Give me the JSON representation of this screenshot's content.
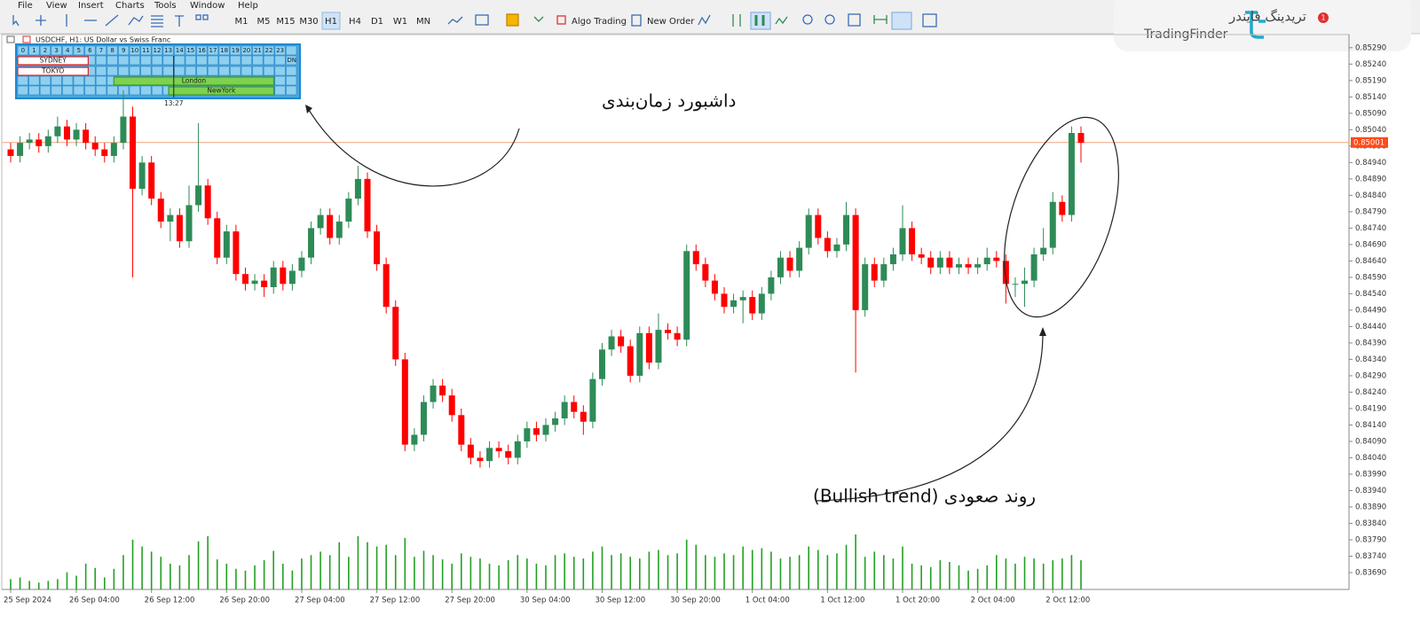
{
  "menu": [
    "File",
    "View",
    "Insert",
    "Charts",
    "Tools",
    "Window",
    "Help"
  ],
  "toolbar": {
    "timeframes": [
      "M1",
      "M5",
      "M15",
      "M30",
      "H1",
      "H4",
      "D1",
      "W1",
      "MN"
    ],
    "buttons": [
      "Algo Trading",
      "New Order"
    ]
  },
  "brand": {
    "name_fa": "تریدینگ فایندر",
    "name_en": "TradingFinder",
    "notifications": 1
  },
  "chart_data": {
    "type": "candlestick",
    "title": "USDCHF, H1:  US Dollar vs Swiss Franc",
    "categories": [
      "25 Sep 2024",
      null,
      null,
      null,
      null,
      null,
      null,
      "26 Sep 04:00",
      null,
      null,
      null,
      null,
      null,
      null,
      null,
      "26 Sep 12:00",
      null,
      null,
      null,
      null,
      null,
      null,
      null,
      "26 Sep 20:00",
      null,
      null,
      null,
      null,
      null,
      null,
      null,
      "27 Sep 04:00",
      null,
      null,
      null,
      null,
      null,
      null,
      null,
      "27 Sep 12:00",
      null,
      null,
      null,
      null,
      null,
      null,
      null,
      "27 Sep 20:00",
      null,
      null,
      null,
      null,
      null,
      null,
      null,
      "30 Sep 04:00",
      null,
      null,
      null,
      null,
      null,
      null,
      null,
      "30 Sep 12:00",
      null,
      null,
      null,
      null,
      null,
      null,
      null,
      "30 Sep 20:00",
      null,
      null,
      null,
      null,
      null,
      null,
      null,
      "1 Oct 04:00",
      null,
      null,
      null,
      null,
      null,
      null,
      null,
      "1 Oct 12:00",
      null,
      null,
      null,
      null,
      null,
      null,
      null,
      "1 Oct 20:00",
      null,
      null,
      null,
      null,
      null,
      null,
      null,
      "2 Oct 04:00",
      null,
      null,
      null,
      null,
      null,
      null,
      null,
      "2 Oct 12:00",
      null,
      null,
      null
    ],
    "open": [
      0.8498,
      0.8496,
      0.85,
      0.8501,
      0.8499,
      0.8502,
      0.8505,
      0.8501,
      0.8504,
      0.85,
      0.8498,
      0.8496,
      0.85,
      0.8508,
      0.8486,
      0.8494,
      0.8483,
      0.8476,
      0.8478,
      0.847,
      0.8481,
      0.8487,
      0.8477,
      0.8465,
      0.8473,
      0.846,
      0.8457,
      0.8458,
      0.8456,
      0.8462,
      0.8457,
      0.8461,
      0.8465,
      0.8474,
      0.8478,
      0.8471,
      0.8476,
      0.8483,
      0.8489,
      0.8473,
      0.8463,
      0.845,
      0.8434,
      0.8408,
      0.8411,
      0.8421,
      0.8426,
      0.8423,
      0.8417,
      0.8408,
      0.8404,
      0.8403,
      0.8407,
      0.8406,
      0.8404,
      0.8409,
      0.8413,
      0.8411,
      0.8414,
      0.8416,
      0.8421,
      0.8418,
      0.8415,
      0.8428,
      0.8437,
      0.8441,
      0.8438,
      0.8429,
      0.8442,
      0.8433,
      0.8443,
      0.8442,
      0.844,
      0.8467,
      0.8463,
      0.8458,
      0.8454,
      0.845,
      0.8452,
      0.8453,
      0.8448,
      0.8454,
      0.8459,
      0.8465,
      0.8461,
      0.8468,
      0.8478,
      0.8471,
      0.8467,
      0.8469,
      0.8478,
      0.8449,
      0.8463,
      0.8458,
      0.8463,
      0.8466,
      0.8474,
      0.8466,
      0.8465,
      0.8462,
      0.8465,
      0.8462,
      0.8463,
      0.8462,
      0.8463,
      0.8465,
      0.8464,
      0.8457,
      0.8457,
      0.8458,
      0.8466,
      0.8468,
      0.8482,
      0.8478,
      0.8503
    ],
    "high": [
      0.85,
      0.8502,
      0.8503,
      0.8503,
      0.8504,
      0.8508,
      0.8507,
      0.8506,
      0.8506,
      0.8502,
      0.85,
      0.8502,
      0.8516,
      0.8511,
      0.8496,
      0.8496,
      0.8485,
      0.848,
      0.848,
      0.8487,
      0.8506,
      0.8489,
      0.8479,
      0.8475,
      0.8475,
      0.8462,
      0.846,
      0.846,
      0.8464,
      0.8464,
      0.8463,
      0.8467,
      0.8476,
      0.848,
      0.848,
      0.8478,
      0.8485,
      0.8493,
      0.8491,
      0.8475,
      0.8465,
      0.8452,
      0.8436,
      0.8413,
      0.8423,
      0.8428,
      0.8428,
      0.8425,
      0.8419,
      0.841,
      0.8406,
      0.8409,
      0.8409,
      0.8408,
      0.8411,
      0.8415,
      0.8415,
      0.8416,
      0.8418,
      0.8423,
      0.8423,
      0.842,
      0.843,
      0.8439,
      0.8443,
      0.8443,
      0.844,
      0.8444,
      0.8444,
      0.8448,
      0.8445,
      0.8444,
      0.8469,
      0.8469,
      0.8465,
      0.846,
      0.8456,
      0.8454,
      0.8455,
      0.8455,
      0.8456,
      0.8461,
      0.8467,
      0.8467,
      0.847,
      0.848,
      0.848,
      0.8473,
      0.8471,
      0.8482,
      0.848,
      0.8465,
      0.8465,
      0.8465,
      0.8468,
      0.8481,
      0.8476,
      0.8468,
      0.8467,
      0.8467,
      0.8467,
      0.8465,
      0.8465,
      0.8465,
      0.8468,
      0.8467,
      0.8466,
      0.8459,
      0.8462,
      0.8468,
      0.8474,
      0.8485,
      0.8484,
      0.8505,
      0.8505
    ],
    "low": [
      0.8494,
      0.8494,
      0.8498,
      0.8497,
      0.8497,
      0.85,
      0.8499,
      0.8499,
      0.8498,
      0.8496,
      0.8494,
      0.8494,
      0.8498,
      0.8459,
      0.8484,
      0.8481,
      0.8474,
      0.847,
      0.8468,
      0.8468,
      0.8479,
      0.8475,
      0.8463,
      0.8463,
      0.8458,
      0.8455,
      0.8455,
      0.8453,
      0.8454,
      0.8455,
      0.8455,
      0.8459,
      0.8463,
      0.8472,
      0.8469,
      0.8469,
      0.8474,
      0.8481,
      0.8471,
      0.8461,
      0.8448,
      0.8432,
      0.8406,
      0.8406,
      0.8409,
      0.8419,
      0.8421,
      0.8415,
      0.8406,
      0.8402,
      0.8401,
      0.8401,
      0.8404,
      0.8402,
      0.8402,
      0.8407,
      0.8409,
      0.8409,
      0.8412,
      0.8414,
      0.8416,
      0.8411,
      0.8413,
      0.8426,
      0.8435,
      0.8436,
      0.8427,
      0.8427,
      0.8431,
      0.8431,
      0.844,
      0.8438,
      0.8438,
      0.8461,
      0.8456,
      0.8452,
      0.8448,
      0.8448,
      0.8445,
      0.8446,
      0.8446,
      0.8452,
      0.8457,
      0.8459,
      0.8459,
      0.8466,
      0.8469,
      0.8465,
      0.8465,
      0.8467,
      0.843,
      0.8447,
      0.8456,
      0.8456,
      0.8461,
      0.8464,
      0.8464,
      0.8463,
      0.846,
      0.846,
      0.846,
      0.846,
      0.846,
      0.846,
      0.8461,
      0.8462,
      0.8451,
      0.8453,
      0.845,
      0.8456,
      0.8464,
      0.8466,
      0.8476,
      0.8476,
      0.8494
    ],
    "close": [
      0.8496,
      0.85,
      0.8501,
      0.8499,
      0.8502,
      0.8505,
      0.8501,
      0.8504,
      0.85,
      0.8498,
      0.8496,
      0.85,
      0.8508,
      0.8486,
      0.8494,
      0.8483,
      0.8476,
      0.8478,
      0.847,
      0.8481,
      0.8487,
      0.8477,
      0.8465,
      0.8473,
      0.846,
      0.8457,
      0.8458,
      0.8456,
      0.8462,
      0.8457,
      0.8461,
      0.8465,
      0.8474,
      0.8478,
      0.8471,
      0.8476,
      0.8483,
      0.8489,
      0.8473,
      0.8463,
      0.845,
      0.8434,
      0.8408,
      0.8411,
      0.8421,
      0.8426,
      0.8423,
      0.8417,
      0.8408,
      0.8404,
      0.8403,
      0.8407,
      0.8406,
      0.8404,
      0.8409,
      0.8413,
      0.8411,
      0.8414,
      0.8416,
      0.8421,
      0.8418,
      0.8415,
      0.8428,
      0.8437,
      0.8441,
      0.8438,
      0.8429,
      0.8442,
      0.8433,
      0.8443,
      0.8442,
      0.844,
      0.8467,
      0.8463,
      0.8458,
      0.8454,
      0.845,
      0.8452,
      0.8453,
      0.8448,
      0.8454,
      0.8459,
      0.8465,
      0.8461,
      0.8468,
      0.8478,
      0.8471,
      0.8467,
      0.8469,
      0.8478,
      0.8449,
      0.8463,
      0.8458,
      0.8463,
      0.8466,
      0.8474,
      0.8466,
      0.8465,
      0.8462,
      0.8465,
      0.8462,
      0.8463,
      0.8462,
      0.8463,
      0.8465,
      0.8464,
      0.8457,
      0.8457,
      0.8458,
      0.8466,
      0.8468,
      0.8482,
      0.8478,
      0.8503,
      0.85
    ],
    "volume": [
      12,
      14,
      10,
      8,
      10,
      12,
      20,
      16,
      30,
      25,
      14,
      24,
      40,
      58,
      50,
      44,
      38,
      30,
      28,
      40,
      56,
      62,
      35,
      30,
      24,
      22,
      28,
      34,
      45,
      30,
      22,
      36,
      40,
      44,
      40,
      55,
      38,
      62,
      55,
      50,
      52,
      40,
      60,
      38,
      45,
      40,
      35,
      30,
      42,
      38,
      36,
      30,
      28,
      34,
      40,
      36,
      30,
      28,
      40,
      42,
      38,
      36,
      44,
      50,
      40,
      42,
      38,
      36,
      44,
      46,
      40,
      42,
      58,
      52,
      40,
      38,
      42,
      40,
      50,
      46,
      48,
      44,
      36,
      38,
      40,
      50,
      46,
      40,
      42,
      52,
      64,
      38,
      44,
      40,
      36,
      50,
      30,
      28,
      26,
      34,
      32,
      28,
      22,
      24,
      28,
      40,
      36,
      30,
      38,
      36,
      30,
      34,
      36,
      40,
      34
    ],
    "ylim": [
      0.8364,
      0.8533
    ],
    "yticks": [
      {
        "value": 0.8529,
        "label": "0.85290"
      },
      {
        "value": 0.8524,
        "label": "0.85240"
      },
      {
        "value": 0.8519,
        "label": "0.85190"
      },
      {
        "value": 0.8514,
        "label": "0.85140"
      },
      {
        "value": 0.8509,
        "label": "0.85090"
      },
      {
        "value": 0.8504,
        "label": "0.85040"
      },
      {
        "value": 0.8499,
        "label": "0.84990"
      },
      {
        "value": 0.8494,
        "label": "0.84940"
      },
      {
        "value": 0.8489,
        "label": "0.84890"
      },
      {
        "value": 0.8484,
        "label": "0.84840"
      },
      {
        "value": 0.8479,
        "label": "0.84790"
      },
      {
        "value": 0.8474,
        "label": "0.84740"
      },
      {
        "value": 0.8469,
        "label": "0.84690"
      },
      {
        "value": 0.8464,
        "label": "0.84640"
      },
      {
        "value": 0.8459,
        "label": "0.84590"
      },
      {
        "value": 0.8454,
        "label": "0.84540"
      },
      {
        "value": 0.8449,
        "label": "0.84490"
      },
      {
        "value": 0.8444,
        "label": "0.84440"
      },
      {
        "value": 0.8439,
        "label": "0.84390"
      },
      {
        "value": 0.8434,
        "label": "0.84340"
      },
      {
        "value": 0.8429,
        "label": "0.84290"
      },
      {
        "value": 0.8424,
        "label": "0.84240"
      },
      {
        "value": 0.8419,
        "label": "0.84190"
      },
      {
        "value": 0.8414,
        "label": "0.84140"
      },
      {
        "value": 0.8409,
        "label": "0.84090"
      },
      {
        "value": 0.8404,
        "label": "0.84040"
      },
      {
        "value": 0.8399,
        "label": "0.83990"
      },
      {
        "value": 0.8394,
        "label": "0.83940"
      },
      {
        "value": 0.8389,
        "label": "0.83890"
      },
      {
        "value": 0.8384,
        "label": "0.83840"
      },
      {
        "value": 0.8379,
        "label": "0.83790"
      },
      {
        "value": 0.8374,
        "label": "0.83740"
      },
      {
        "value": 0.8369,
        "label": "0.83690"
      }
    ],
    "current_price": 0.85001,
    "grid": false,
    "up_color": "#2e8b57",
    "down_color": "#ff0000",
    "volume_color": "#22a022",
    "price_line_color": "#f2a27c",
    "price_label_color": "#ff4a1a"
  },
  "session_dashboard": {
    "hours": [
      0,
      1,
      2,
      3,
      4,
      5,
      6,
      7,
      8,
      9,
      10,
      11,
      12,
      13,
      14,
      15,
      16,
      17,
      18,
      19,
      20,
      21,
      22,
      23
    ],
    "sessions": [
      {
        "name": "SYDNEY",
        "start": 0,
        "end": 6.3,
        "color": "#ffffff"
      },
      {
        "name": "TOKYO",
        "start": 0,
        "end": 6.3,
        "color": "#ffffff"
      },
      {
        "name": "London",
        "start": 8.6,
        "end": 22.9,
        "color": "#7fd14e"
      },
      {
        "name": "NewYork",
        "start": 13.5,
        "end": 22.9,
        "color": "#7fd14e"
      }
    ],
    "label": "DN",
    "time": "13:27"
  },
  "annotations": {
    "dashboard": "داشبورد زمان‌بندی",
    "trend": "روند  صعودی (Bullish trend)"
  }
}
